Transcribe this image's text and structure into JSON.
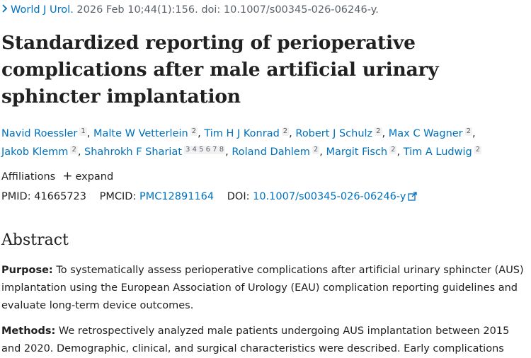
{
  "citation": {
    "journal": "World J Urol.",
    "details": "2026 Feb 10;44(1):156. doi: 10.1007/s00345-026-06246-y."
  },
  "title": "Standardized reporting of perioperative complications after male artificial urinary sphincter implantation",
  "authors": [
    {
      "name": "Navid Roessler",
      "affil": "1"
    },
    {
      "name": "Malte W Vetterlein",
      "affil": "2"
    },
    {
      "name": "Tim H J Konrad",
      "affil": "2"
    },
    {
      "name": "Robert J Schulz",
      "affil": "2"
    },
    {
      "name": "Max C Wagner",
      "affil": "2"
    },
    {
      "name": "Jakob Klemm",
      "affil": "2"
    },
    {
      "name": "Shahrokh F Shariat",
      "affil": "3 4 5 6 7 8"
    },
    {
      "name": "Roland Dahlem",
      "affil": "2"
    },
    {
      "name": "Margit Fisch",
      "affil": "2"
    },
    {
      "name": "Tim A Ludwig",
      "affil": "2"
    }
  ],
  "affiliations": {
    "label": "Affiliations",
    "expand": "expand"
  },
  "ids": {
    "pmid_label": "PMID:",
    "pmid": "41665723",
    "pmcid_label": "PMCID:",
    "pmcid": "PMC12891164",
    "doi_label": "DOI:",
    "doi": "10.1007/s00345-026-06246-y"
  },
  "abstract": {
    "heading": "Abstract",
    "purpose_label": "Purpose:",
    "purpose_text": "To systematically assess perioperative complications after artificial urinary sphincter (AUS) implantation using the European Association of Urology (EAU) complication reporting guidelines and evaluate long-term device outcomes.",
    "methods_label": "Methods:",
    "methods_text": "We retrospectively analyzed male patients undergoing AUS implantation between 2015 and 2020. Demographic, clinical, and surgical characteristics were described. Early complications"
  },
  "colors": {
    "link": "#0071bc",
    "text": "#212121",
    "muted": "#5b616b"
  },
  "icons": {
    "citation_chevron": "chevron-right-icon",
    "expand": "plus-icon",
    "external": "external-link-icon"
  }
}
